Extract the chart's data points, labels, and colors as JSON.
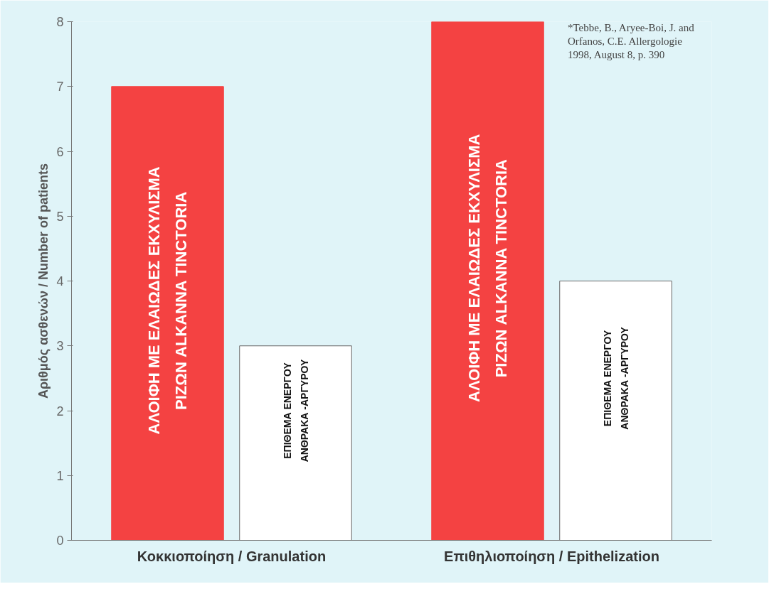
{
  "chart_data": {
    "type": "bar",
    "ylabel": "Αριθμός ασθενών / Number of patients",
    "categories": [
      "Κοκκιοποίηση / Granulation",
      "Επιθηλιοποίηση / Epithelization"
    ],
    "series": [
      {
        "name": "ΑΛΟΙΦΗ ΜΕ ΕΛΑΙΩΔΕΣ ΕΚΧΥΛΙΣΜΑ\nΡΙΖΩΝ ALKANNA TINCTORIA",
        "color": "#f44242",
        "values": [
          7,
          8
        ]
      },
      {
        "name": "ΕΠΙΘΕΜΑ ΕΝΕΡΓΟΥ\nΑΝΘΡΑΚΑ -ΑΡΓΥΡΟΥ",
        "color": "#ffffff",
        "values": [
          3,
          4
        ]
      }
    ],
    "ylim": [
      0,
      8
    ],
    "yticks": [
      0,
      1,
      2,
      3,
      4,
      5,
      6,
      7,
      8
    ],
    "grid": false,
    "annotations": [
      "*Tebbe, B., Aryee-Boi, J. and Orfanos, C.E. Allergologie 1998, August 8, p. 390"
    ]
  }
}
